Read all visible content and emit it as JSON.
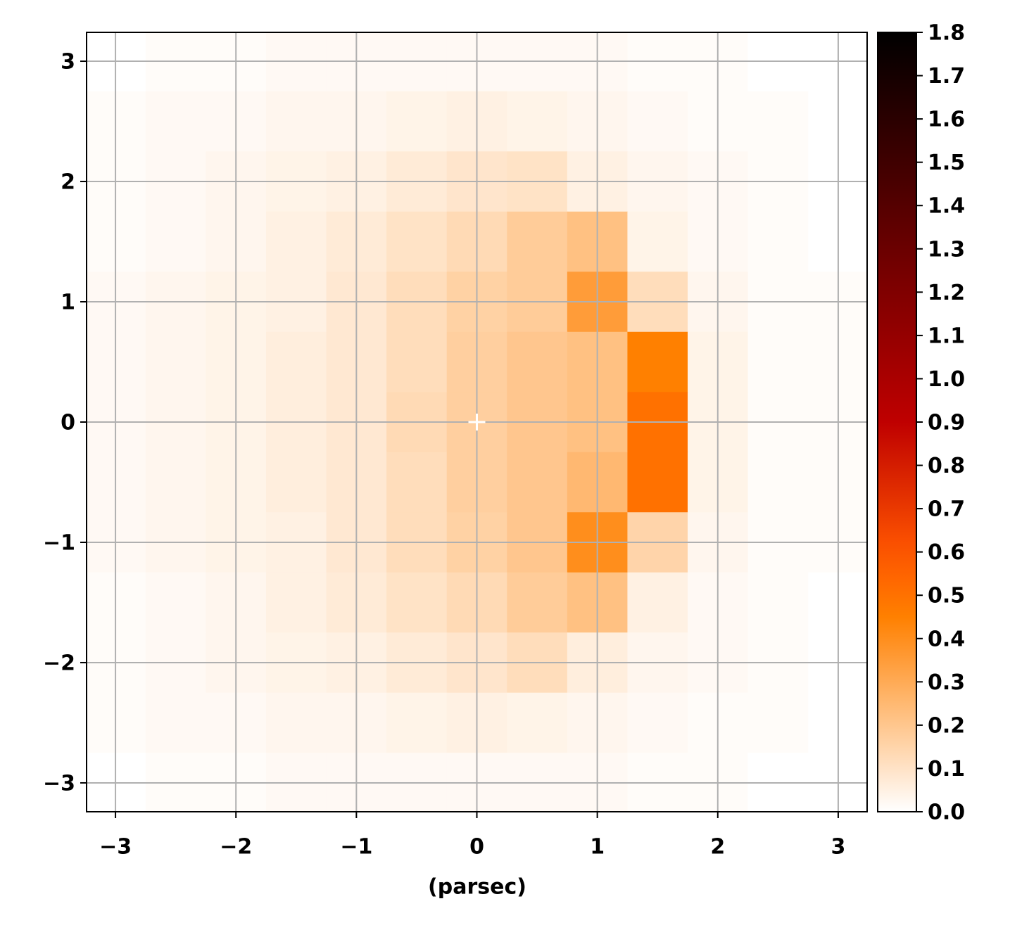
{
  "chart_data": {
    "type": "heatmap",
    "xlabel": "(parsec)",
    "x": [
      -3,
      -2.5,
      -2,
      -1.5,
      -1,
      -0.5,
      0,
      0.5,
      1,
      1.5,
      2,
      2.5,
      3
    ],
    "y": [
      3,
      2.5,
      2,
      1.5,
      1,
      0.5,
      0,
      -0.5,
      -1,
      -1.5,
      -2,
      -2.5,
      -3
    ],
    "values": [
      [
        0,
        0.01,
        0.01,
        0.02,
        0.02,
        0.02,
        0.02,
        0.02,
        0.02,
        0.01,
        0.01,
        0,
        0
      ],
      [
        0.01,
        0.02,
        0.02,
        0.03,
        0.03,
        0.04,
        0.05,
        0.04,
        0.03,
        0.02,
        0.01,
        0.01,
        0
      ],
      [
        0.01,
        0.02,
        0.03,
        0.04,
        0.05,
        0.07,
        0.09,
        0.1,
        0.05,
        0.03,
        0.02,
        0.01,
        0
      ],
      [
        0.01,
        0.02,
        0.03,
        0.05,
        0.07,
        0.1,
        0.13,
        0.18,
        0.22,
        0.04,
        0.02,
        0.01,
        0
      ],
      [
        0.02,
        0.03,
        0.04,
        0.05,
        0.08,
        0.12,
        0.16,
        0.18,
        0.35,
        0.12,
        0.03,
        0.01,
        0.01
      ],
      [
        0.02,
        0.03,
        0.04,
        0.06,
        0.08,
        0.12,
        0.17,
        0.2,
        0.22,
        0.45,
        0.04,
        0.01,
        0.01
      ],
      [
        0.02,
        0.03,
        0.04,
        0.06,
        0.08,
        0.13,
        0.17,
        0.2,
        0.22,
        0.5,
        0.04,
        0.01,
        0.01
      ],
      [
        0.02,
        0.03,
        0.04,
        0.06,
        0.08,
        0.12,
        0.17,
        0.2,
        0.25,
        0.5,
        0.04,
        0.01,
        0.01
      ],
      [
        0.02,
        0.03,
        0.04,
        0.05,
        0.08,
        0.12,
        0.16,
        0.2,
        0.4,
        0.15,
        0.03,
        0.01,
        0.01
      ],
      [
        0.01,
        0.02,
        0.03,
        0.05,
        0.07,
        0.1,
        0.13,
        0.18,
        0.22,
        0.05,
        0.02,
        0.01,
        0
      ],
      [
        0.01,
        0.02,
        0.03,
        0.04,
        0.05,
        0.07,
        0.09,
        0.12,
        0.06,
        0.03,
        0.02,
        0.01,
        0
      ],
      [
        0.01,
        0.02,
        0.02,
        0.03,
        0.03,
        0.04,
        0.05,
        0.04,
        0.03,
        0.02,
        0.01,
        0.01,
        0
      ],
      [
        0,
        0.01,
        0.01,
        0.02,
        0.02,
        0.02,
        0.02,
        0.02,
        0.02,
        0.01,
        0.01,
        0,
        0
      ]
    ],
    "xlim": [
      -3.24,
      3.24
    ],
    "ylim": [
      -3.24,
      3.24
    ],
    "xticks": [
      {
        "value": -3,
        "label": "−3"
      },
      {
        "value": -2,
        "label": "−2"
      },
      {
        "value": -1,
        "label": "−1"
      },
      0,
      1,
      2,
      3
    ],
    "yticks": [
      {
        "value": -3,
        "label": "−3"
      },
      {
        "value": -2,
        "label": "−2"
      },
      {
        "value": -1,
        "label": "−1"
      },
      0,
      1,
      2,
      3
    ],
    "grid": true,
    "colormap": "gist_heat_r",
    "clim": [
      0,
      1.8
    ],
    "cticks": [
      {
        "value": 0,
        "label": "0.0"
      },
      0.1,
      0.2,
      0.3,
      0.4,
      0.5,
      0.6,
      0.7,
      0.8,
      0.9,
      {
        "value": 1,
        "label": "1.0"
      },
      1.1,
      1.2,
      1.3,
      1.4,
      1.5,
      1.6,
      1.7,
      1.8
    ],
    "center_marker": {
      "x": 0,
      "y": 0,
      "color": "#ffffff"
    }
  }
}
